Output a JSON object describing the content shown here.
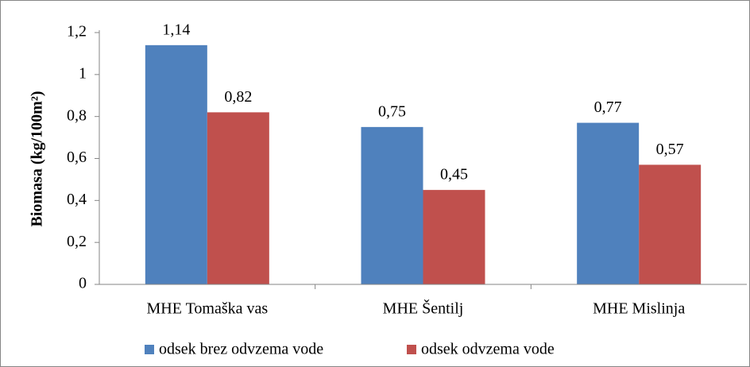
{
  "chart_data": {
    "type": "bar",
    "ylabel": "Biomasa (kg/100m²)",
    "categories": [
      "MHE Tomaška vas",
      "MHE Šentilj",
      "MHE Mislinja"
    ],
    "series": [
      {
        "name": "odsek brez odvzema vode",
        "color": "#4f81bd",
        "values": [
          1.14,
          0.75,
          0.77
        ],
        "value_labels": [
          "1,14",
          "0,75",
          "0,77"
        ]
      },
      {
        "name": "odsek odvzema vode",
        "color": "#c0504d",
        "values": [
          0.82,
          0.45,
          0.57
        ],
        "value_labels": [
          "0,82",
          "0,45",
          "0,57"
        ]
      }
    ],
    "ylim": [
      0,
      1.2
    ],
    "yticks": [
      0,
      {
        "value": 0.2,
        "label": "0,2"
      },
      {
        "value": 0.4,
        "label": "0,4"
      },
      {
        "value": 0.6,
        "label": "0,6"
      },
      {
        "value": 0.8,
        "label": "0,8"
      },
      1,
      {
        "value": 1.2,
        "label": "1,2"
      }
    ],
    "grid": false,
    "legend": "bottom"
  }
}
